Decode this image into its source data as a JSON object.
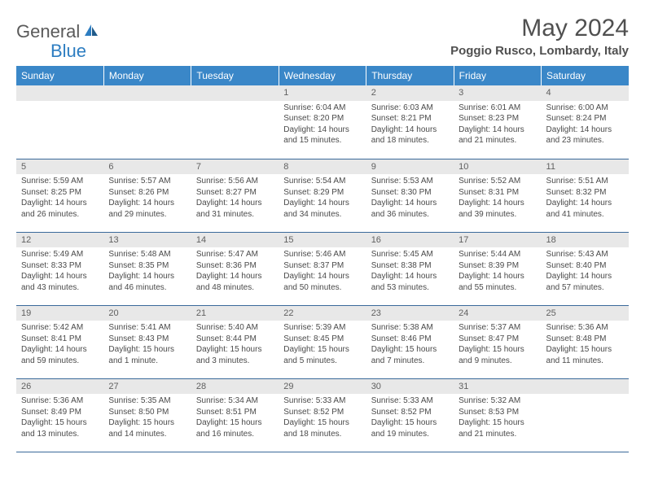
{
  "logo": {
    "text1": "General",
    "text2": "Blue"
  },
  "title": "May 2024",
  "location": "Poggio Rusco, Lombardy, Italy",
  "colors": {
    "header_bg": "#3a87c8",
    "header_text": "#ffffff",
    "daynum_bg": "#e8e8e8",
    "row_border": "#3a6a9a",
    "text": "#4a4a4a",
    "logo_gray": "#5a5a5a",
    "logo_blue": "#2d7dc1"
  },
  "weekdays": [
    "Sunday",
    "Monday",
    "Tuesday",
    "Wednesday",
    "Thursday",
    "Friday",
    "Saturday"
  ],
  "weeks": [
    [
      {
        "num": "",
        "sunrise": "",
        "sunset": "",
        "daylight": ""
      },
      {
        "num": "",
        "sunrise": "",
        "sunset": "",
        "daylight": ""
      },
      {
        "num": "",
        "sunrise": "",
        "sunset": "",
        "daylight": ""
      },
      {
        "num": "1",
        "sunrise": "Sunrise: 6:04 AM",
        "sunset": "Sunset: 8:20 PM",
        "daylight": "Daylight: 14 hours and 15 minutes."
      },
      {
        "num": "2",
        "sunrise": "Sunrise: 6:03 AM",
        "sunset": "Sunset: 8:21 PM",
        "daylight": "Daylight: 14 hours and 18 minutes."
      },
      {
        "num": "3",
        "sunrise": "Sunrise: 6:01 AM",
        "sunset": "Sunset: 8:23 PM",
        "daylight": "Daylight: 14 hours and 21 minutes."
      },
      {
        "num": "4",
        "sunrise": "Sunrise: 6:00 AM",
        "sunset": "Sunset: 8:24 PM",
        "daylight": "Daylight: 14 hours and 23 minutes."
      }
    ],
    [
      {
        "num": "5",
        "sunrise": "Sunrise: 5:59 AM",
        "sunset": "Sunset: 8:25 PM",
        "daylight": "Daylight: 14 hours and 26 minutes."
      },
      {
        "num": "6",
        "sunrise": "Sunrise: 5:57 AM",
        "sunset": "Sunset: 8:26 PM",
        "daylight": "Daylight: 14 hours and 29 minutes."
      },
      {
        "num": "7",
        "sunrise": "Sunrise: 5:56 AM",
        "sunset": "Sunset: 8:27 PM",
        "daylight": "Daylight: 14 hours and 31 minutes."
      },
      {
        "num": "8",
        "sunrise": "Sunrise: 5:54 AM",
        "sunset": "Sunset: 8:29 PM",
        "daylight": "Daylight: 14 hours and 34 minutes."
      },
      {
        "num": "9",
        "sunrise": "Sunrise: 5:53 AM",
        "sunset": "Sunset: 8:30 PM",
        "daylight": "Daylight: 14 hours and 36 minutes."
      },
      {
        "num": "10",
        "sunrise": "Sunrise: 5:52 AM",
        "sunset": "Sunset: 8:31 PM",
        "daylight": "Daylight: 14 hours and 39 minutes."
      },
      {
        "num": "11",
        "sunrise": "Sunrise: 5:51 AM",
        "sunset": "Sunset: 8:32 PM",
        "daylight": "Daylight: 14 hours and 41 minutes."
      }
    ],
    [
      {
        "num": "12",
        "sunrise": "Sunrise: 5:49 AM",
        "sunset": "Sunset: 8:33 PM",
        "daylight": "Daylight: 14 hours and 43 minutes."
      },
      {
        "num": "13",
        "sunrise": "Sunrise: 5:48 AM",
        "sunset": "Sunset: 8:35 PM",
        "daylight": "Daylight: 14 hours and 46 minutes."
      },
      {
        "num": "14",
        "sunrise": "Sunrise: 5:47 AM",
        "sunset": "Sunset: 8:36 PM",
        "daylight": "Daylight: 14 hours and 48 minutes."
      },
      {
        "num": "15",
        "sunrise": "Sunrise: 5:46 AM",
        "sunset": "Sunset: 8:37 PM",
        "daylight": "Daylight: 14 hours and 50 minutes."
      },
      {
        "num": "16",
        "sunrise": "Sunrise: 5:45 AM",
        "sunset": "Sunset: 8:38 PM",
        "daylight": "Daylight: 14 hours and 53 minutes."
      },
      {
        "num": "17",
        "sunrise": "Sunrise: 5:44 AM",
        "sunset": "Sunset: 8:39 PM",
        "daylight": "Daylight: 14 hours and 55 minutes."
      },
      {
        "num": "18",
        "sunrise": "Sunrise: 5:43 AM",
        "sunset": "Sunset: 8:40 PM",
        "daylight": "Daylight: 14 hours and 57 minutes."
      }
    ],
    [
      {
        "num": "19",
        "sunrise": "Sunrise: 5:42 AM",
        "sunset": "Sunset: 8:41 PM",
        "daylight": "Daylight: 14 hours and 59 minutes."
      },
      {
        "num": "20",
        "sunrise": "Sunrise: 5:41 AM",
        "sunset": "Sunset: 8:43 PM",
        "daylight": "Daylight: 15 hours and 1 minute."
      },
      {
        "num": "21",
        "sunrise": "Sunrise: 5:40 AM",
        "sunset": "Sunset: 8:44 PM",
        "daylight": "Daylight: 15 hours and 3 minutes."
      },
      {
        "num": "22",
        "sunrise": "Sunrise: 5:39 AM",
        "sunset": "Sunset: 8:45 PM",
        "daylight": "Daylight: 15 hours and 5 minutes."
      },
      {
        "num": "23",
        "sunrise": "Sunrise: 5:38 AM",
        "sunset": "Sunset: 8:46 PM",
        "daylight": "Daylight: 15 hours and 7 minutes."
      },
      {
        "num": "24",
        "sunrise": "Sunrise: 5:37 AM",
        "sunset": "Sunset: 8:47 PM",
        "daylight": "Daylight: 15 hours and 9 minutes."
      },
      {
        "num": "25",
        "sunrise": "Sunrise: 5:36 AM",
        "sunset": "Sunset: 8:48 PM",
        "daylight": "Daylight: 15 hours and 11 minutes."
      }
    ],
    [
      {
        "num": "26",
        "sunrise": "Sunrise: 5:36 AM",
        "sunset": "Sunset: 8:49 PM",
        "daylight": "Daylight: 15 hours and 13 minutes."
      },
      {
        "num": "27",
        "sunrise": "Sunrise: 5:35 AM",
        "sunset": "Sunset: 8:50 PM",
        "daylight": "Daylight: 15 hours and 14 minutes."
      },
      {
        "num": "28",
        "sunrise": "Sunrise: 5:34 AM",
        "sunset": "Sunset: 8:51 PM",
        "daylight": "Daylight: 15 hours and 16 minutes."
      },
      {
        "num": "29",
        "sunrise": "Sunrise: 5:33 AM",
        "sunset": "Sunset: 8:52 PM",
        "daylight": "Daylight: 15 hours and 18 minutes."
      },
      {
        "num": "30",
        "sunrise": "Sunrise: 5:33 AM",
        "sunset": "Sunset: 8:52 PM",
        "daylight": "Daylight: 15 hours and 19 minutes."
      },
      {
        "num": "31",
        "sunrise": "Sunrise: 5:32 AM",
        "sunset": "Sunset: 8:53 PM",
        "daylight": "Daylight: 15 hours and 21 minutes."
      },
      {
        "num": "",
        "sunrise": "",
        "sunset": "",
        "daylight": ""
      }
    ]
  ]
}
